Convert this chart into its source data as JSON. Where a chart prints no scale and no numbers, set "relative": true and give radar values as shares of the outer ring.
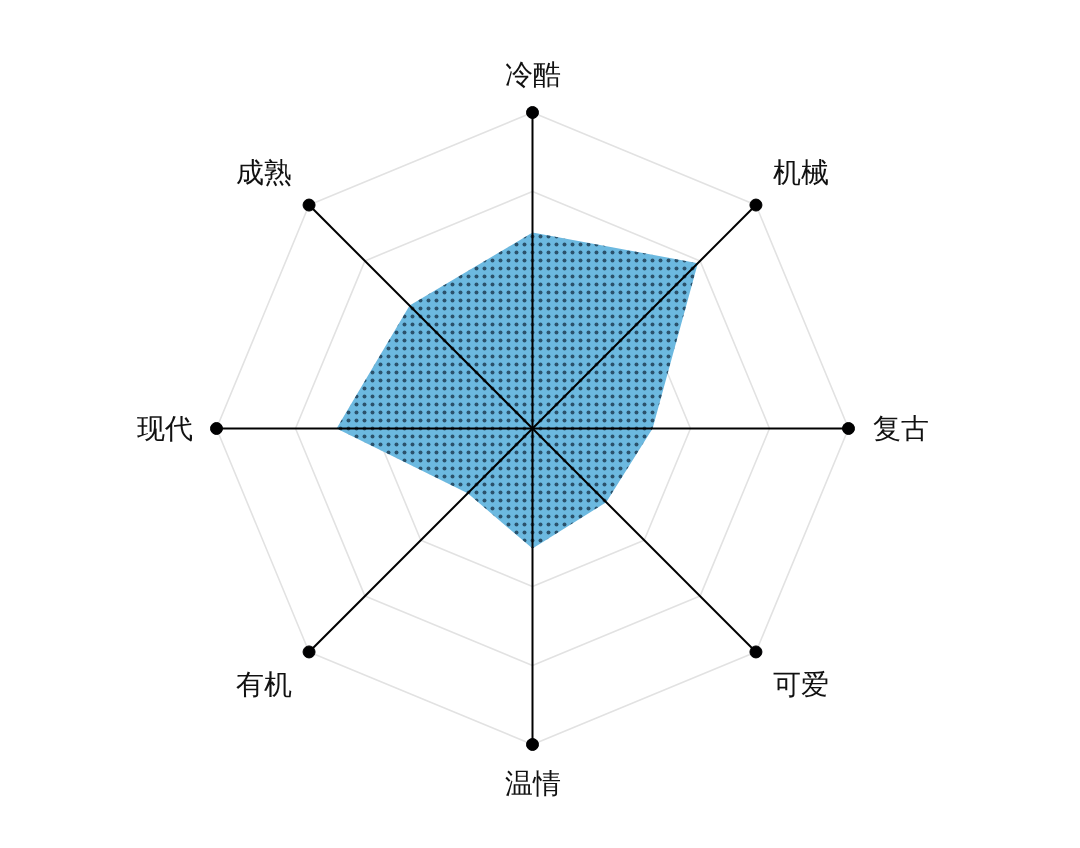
{
  "chart_data": {
    "type": "radar",
    "relative": true,
    "grid": true,
    "categories": [
      "冷酷",
      "机械",
      "复古",
      "可爱",
      "温情",
      "有机",
      "现代",
      "成熟"
    ],
    "series": [
      {
        "color": "#6cb9e0",
        "values": [
          0.62,
          0.74,
          0.38,
          0.33,
          0.38,
          0.29,
          0.62,
          0.55
        ]
      }
    ]
  }
}
